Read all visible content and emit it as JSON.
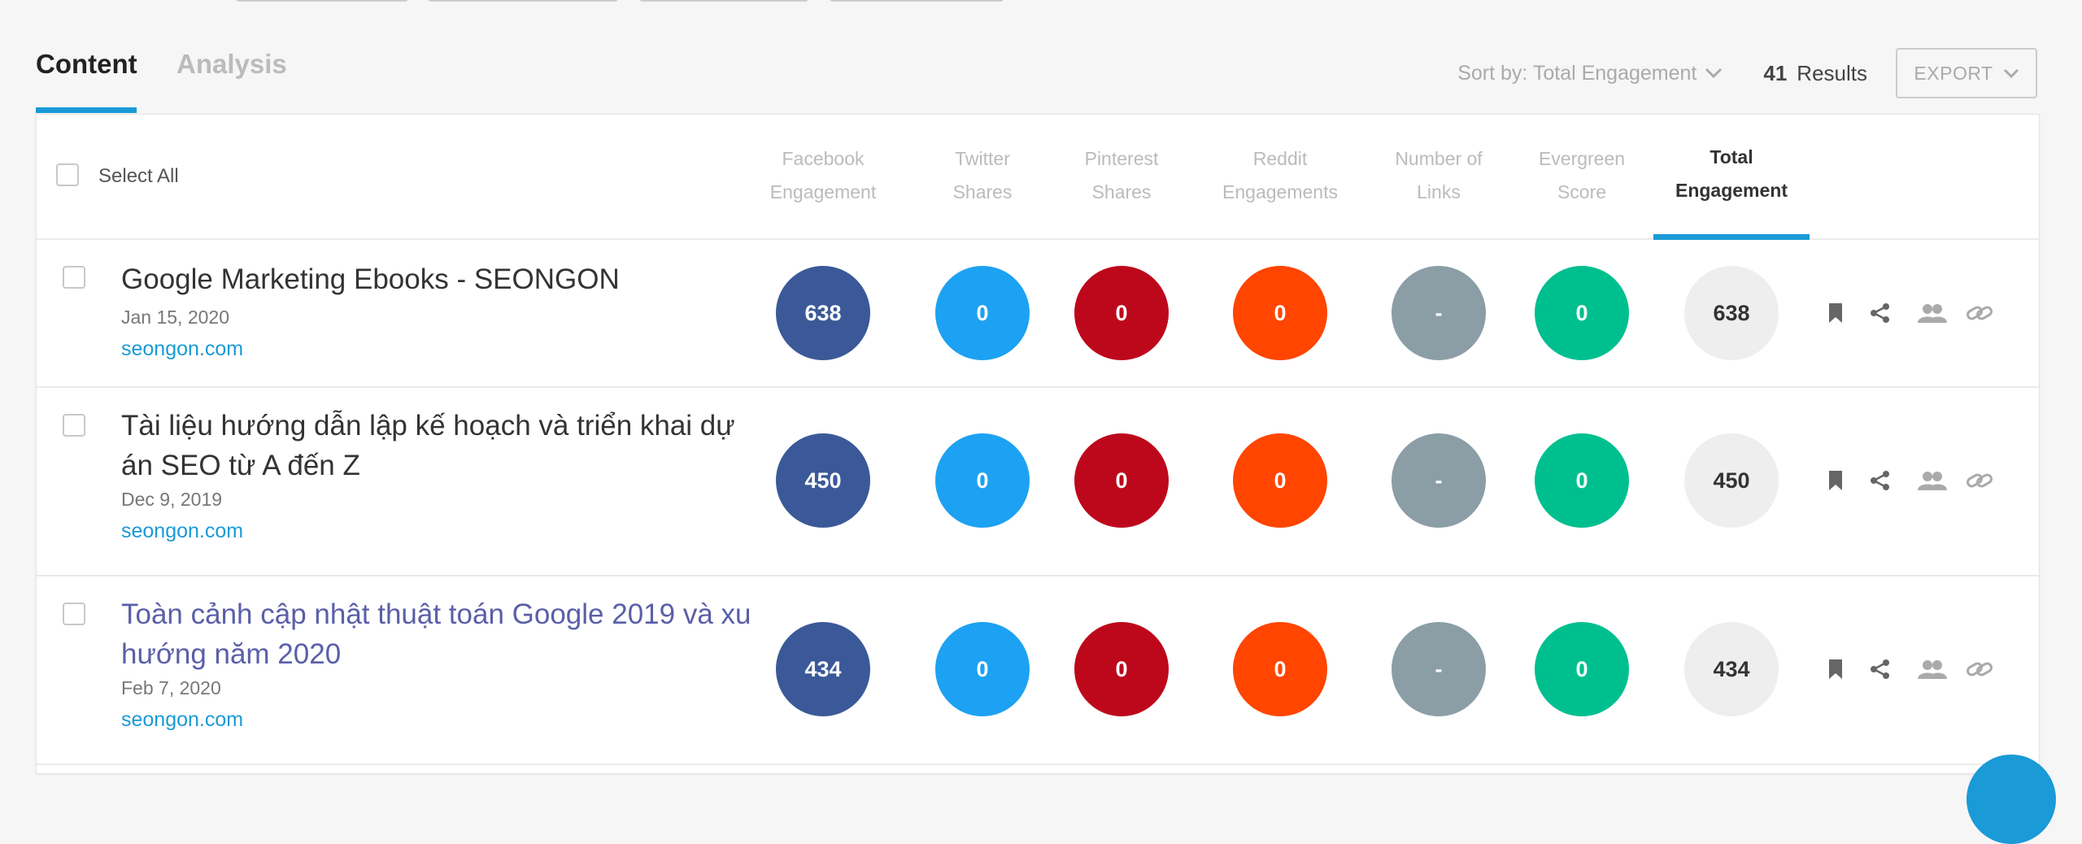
{
  "tabs": [
    {
      "label": "Content",
      "active": true
    },
    {
      "label": "Analysis",
      "active": false
    }
  ],
  "toolbar": {
    "sort_label": "Sort by: Total Engagement",
    "results_count": "41",
    "results_label": "Results",
    "export_label": "EXPORT"
  },
  "header": {
    "select_all": "Select All",
    "columns": [
      {
        "line1": "Facebook",
        "line2": "Engagement",
        "color": "#3b5998"
      },
      {
        "line1": "Twitter",
        "line2": "Shares",
        "color": "#1da1f2"
      },
      {
        "line1": "Pinterest",
        "line2": "Shares",
        "color": "#bd081c"
      },
      {
        "line1": "Reddit",
        "line2": "Engagements",
        "color": "#ff4500"
      },
      {
        "line1": "Number of",
        "line2": "Links",
        "color": "#8b9ea6"
      },
      {
        "line1": "Evergreen",
        "line2": "Score",
        "color": "#00bf8f"
      },
      {
        "line1": "Total",
        "line2": "Engagement",
        "color": "#eeeeee",
        "active": true
      }
    ]
  },
  "rows": [
    {
      "title": "Google Marketing Ebooks - SEONGON",
      "date": "Jan 15, 2020",
      "domain": "seongon.com",
      "visited": false,
      "values": [
        "638",
        "0",
        "0",
        "0",
        "-",
        "0",
        "638"
      ]
    },
    {
      "title": "Tài liệu hướng dẫn lập kế hoạch và triển khai dự án SEO từ A đến Z",
      "date": "Dec 9, 2019",
      "domain": "seongon.com",
      "visited": false,
      "values": [
        "450",
        "0",
        "0",
        "0",
        "-",
        "0",
        "450"
      ]
    },
    {
      "title": "Toàn cảnh cập nhật thuật toán Google 2019 và xu hướng năm 2020",
      "date": "Feb 7, 2020",
      "domain": "seongon.com",
      "visited": true,
      "values": [
        "434",
        "0",
        "0",
        "0",
        "-",
        "0",
        "434"
      ]
    }
  ],
  "row_action_icons": [
    "bookmark-icon",
    "share-icon",
    "users-icon",
    "link-icon"
  ]
}
